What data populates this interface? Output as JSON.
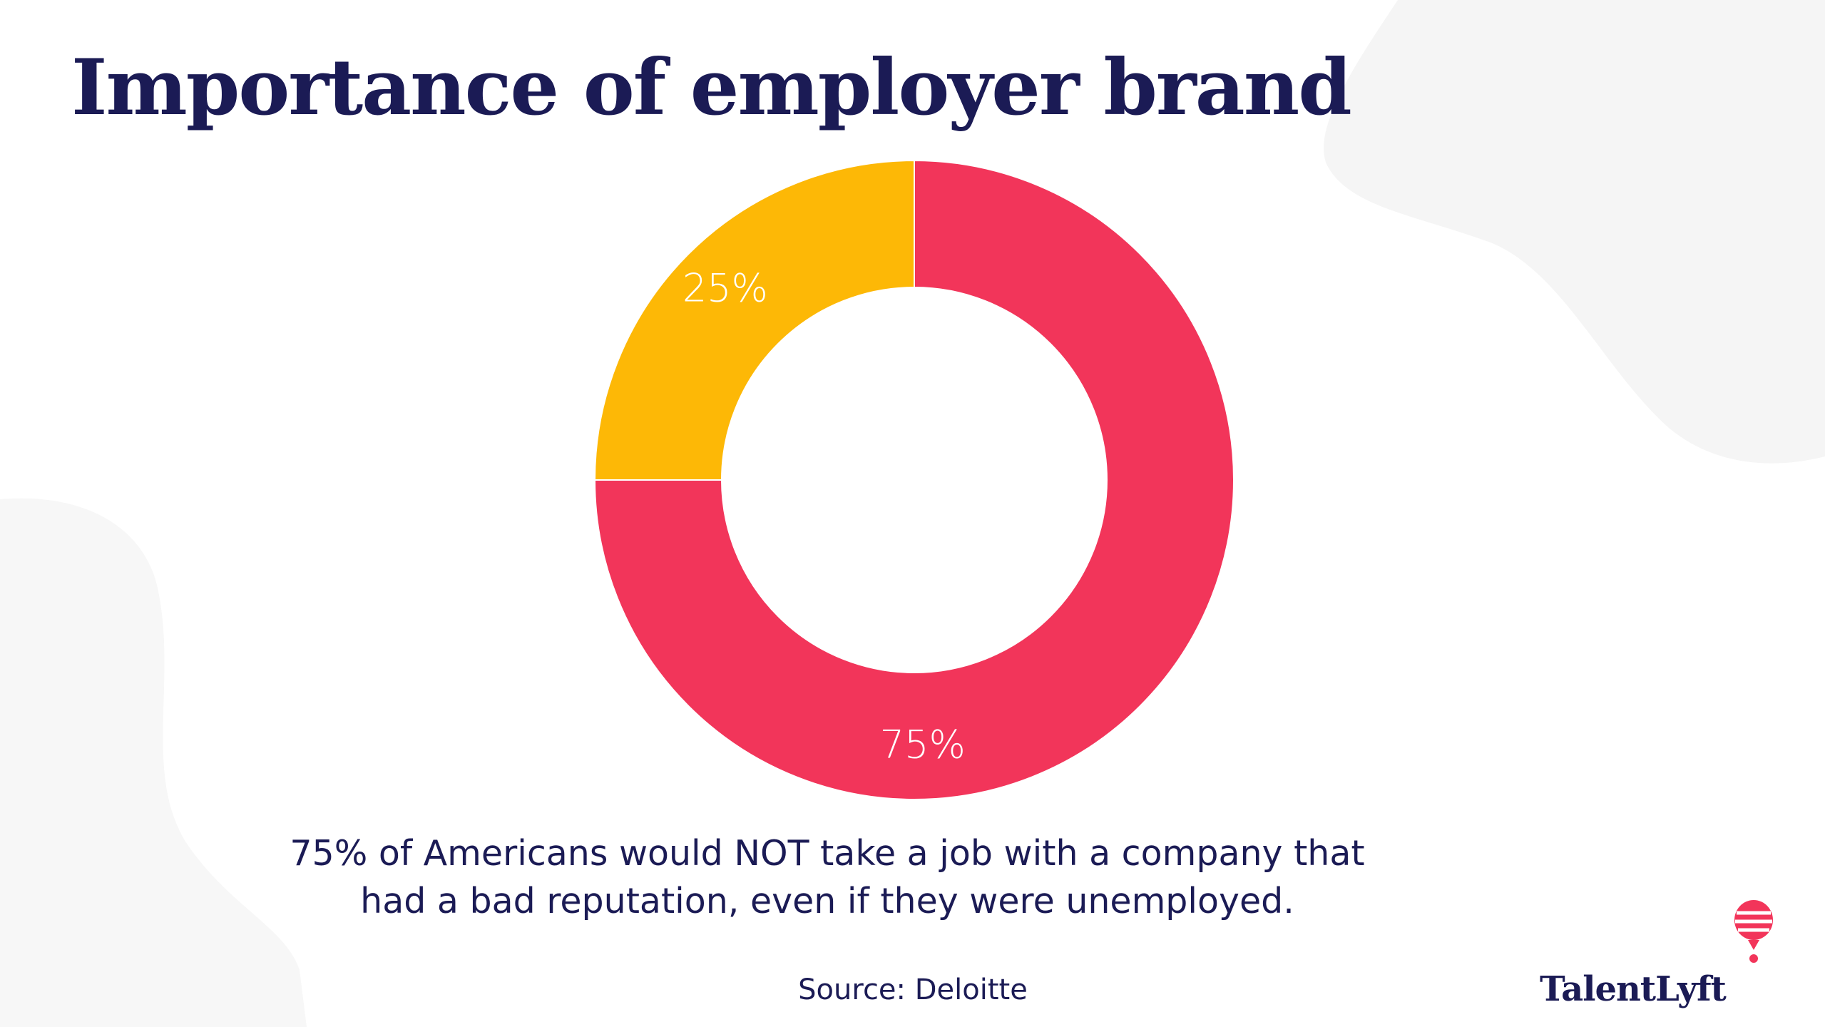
{
  "title": "Importance of employer brand",
  "chart_data": {
    "type": "pie",
    "style": "donut",
    "slices": [
      {
        "label": "75%",
        "value": 75,
        "color": "#f2355a"
      },
      {
        "label": "25%",
        "value": 25,
        "color": "#fdb806"
      }
    ]
  },
  "caption": {
    "line1": "75% of Americans would NOT take a job with a company that",
    "line2": "had a bad reputation, even if they were unemployed."
  },
  "source": "Source: Deloitte",
  "brand": {
    "name": "TalentLyft",
    "icon": "balloon-icon"
  },
  "colors": {
    "text": "#1b1b55",
    "background": "#ffffff",
    "decor": "#f5f5f5"
  }
}
